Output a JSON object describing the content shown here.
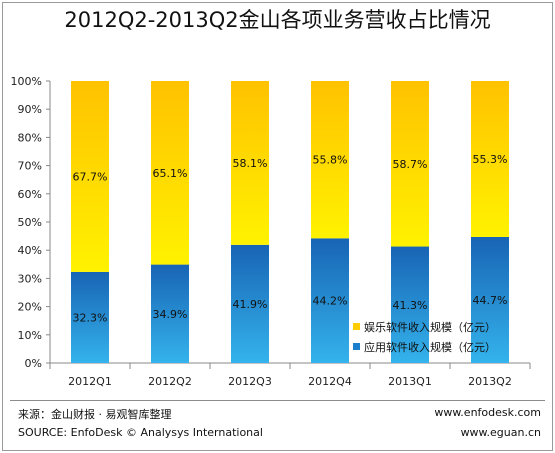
{
  "title": "2012Q2-2013Q2金山各项业务营收占比情况",
  "chart_data": {
    "type": "bar",
    "stacked": true,
    "categories": [
      "2012Q1",
      "2012Q2",
      "2012Q3",
      "2012Q4",
      "2013Q1",
      "2013Q2"
    ],
    "series": [
      {
        "name": "应用软件收入规模（亿元）",
        "values": [
          32.3,
          34.9,
          41.9,
          44.2,
          41.3,
          44.7
        ],
        "labels": [
          "32.3%",
          "34.9%",
          "41.9%",
          "44.2%",
          "41.3%",
          "44.7%"
        ],
        "color": "#1b7fcb"
      },
      {
        "name": "娱乐软件收入规模（亿元）",
        "values": [
          67.7,
          65.1,
          58.1,
          55.8,
          58.7,
          55.3
        ],
        "labels": [
          "67.7%",
          "65.1%",
          "58.1%",
          "55.8%",
          "58.7%",
          "55.3%"
        ],
        "color": "#ffd500"
      }
    ],
    "yticks": [
      "0%",
      "10%",
      "20%",
      "30%",
      "40%",
      "50%",
      "60%",
      "70%",
      "80%",
      "90%",
      "100%"
    ],
    "ylim": [
      0,
      100
    ],
    "grid": false,
    "legend_position": "bottom-right"
  },
  "footer": {
    "source_cn": "来源：金山财报 · 易观智库整理",
    "source_en": "SOURCE: EnfoDesk © Analysys International",
    "site1": "www.enfodesk.com",
    "site2": "www.eguan.cn"
  }
}
